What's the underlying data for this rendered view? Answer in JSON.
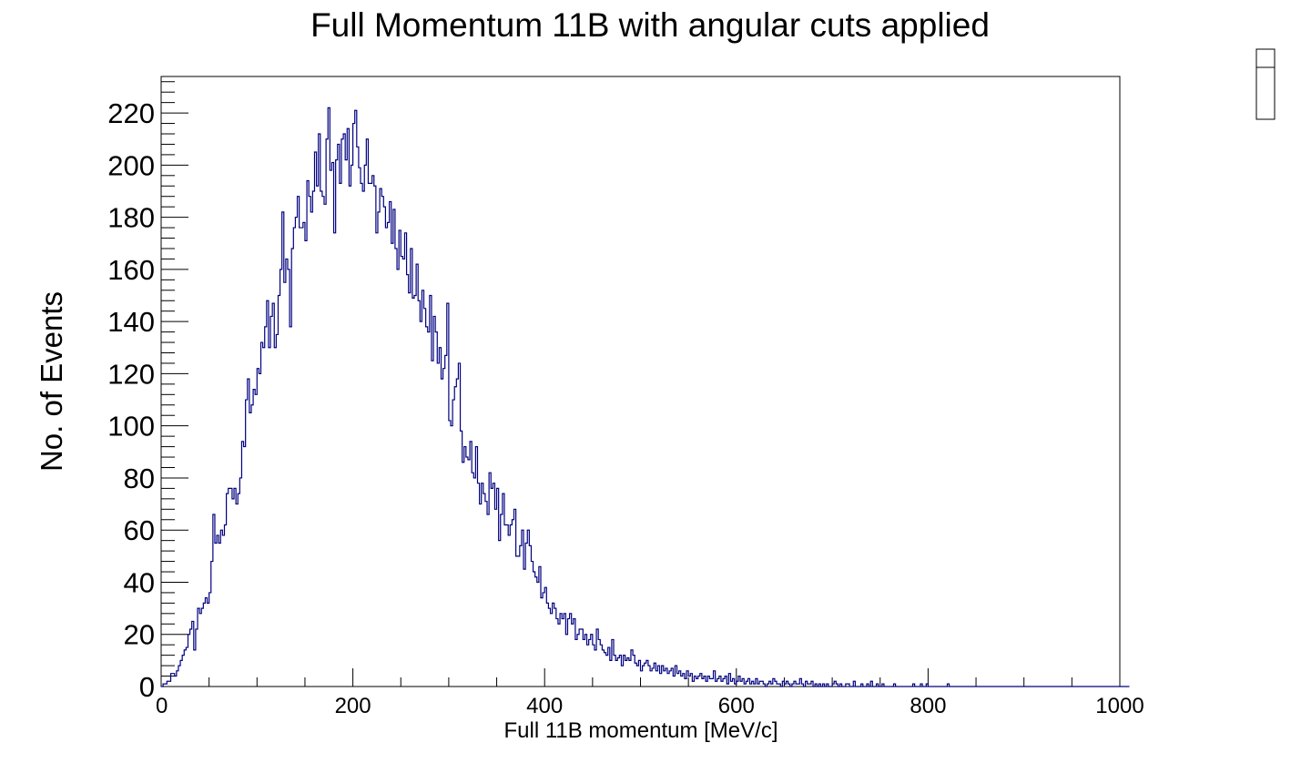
{
  "chart_data": {
    "type": "histogram",
    "title": "Full Momentum 11B with angular cuts applied",
    "xlabel": "Full 11B momentum [MeV/c]",
    "ylabel": "No. of Events",
    "xlim": [
      0,
      1000
    ],
    "ylim": [
      0,
      234
    ],
    "grid": false,
    "legend": "none",
    "line_color": "#000080",
    "x_ticks": [
      0,
      200,
      400,
      600,
      800,
      1000
    ],
    "y_ticks": [
      0,
      20,
      40,
      60,
      80,
      100,
      120,
      140,
      160,
      180,
      200,
      220
    ],
    "x_tick_labels": [
      "0",
      "200",
      "400",
      "600",
      "800",
      "1000"
    ],
    "y_tick_labels": [
      "0",
      "20",
      "40",
      "60",
      "80",
      "100",
      "120",
      "140",
      "160",
      "180",
      "200",
      "220"
    ],
    "bin_width": 2,
    "bin_values": [
      0,
      1,
      1,
      2,
      2,
      5,
      5,
      4,
      6,
      8,
      10,
      12,
      14,
      15,
      20,
      22,
      25,
      14,
      22,
      30,
      28,
      30,
      32,
      34,
      32,
      36,
      48,
      66,
      55,
      58,
      55,
      60,
      58,
      62,
      74,
      76,
      76,
      72,
      76,
      70,
      74,
      80,
      94,
      92,
      110,
      118,
      105,
      108,
      114,
      112,
      122,
      120,
      132,
      130,
      138,
      148,
      130,
      142,
      147,
      130,
      135,
      150,
      160,
      182,
      155,
      164,
      160,
      138,
      168,
      176,
      180,
      188,
      176,
      176,
      178,
      171,
      194,
      188,
      182,
      190,
      205,
      192,
      212,
      190,
      188,
      185,
      210,
      222,
      198,
      201,
      174,
      202,
      208,
      193,
      210,
      212,
      202,
      214,
      192,
      200,
      216,
      221,
      207,
      199,
      193,
      190,
      200,
      210,
      193,
      193,
      196,
      192,
      174,
      182,
      191,
      188,
      184,
      176,
      178,
      186,
      170,
      183,
      168,
      160,
      175,
      165,
      164,
      174,
      158,
      151,
      168,
      149,
      150,
      162,
      148,
      140,
      152,
      145,
      138,
      136,
      150,
      125,
      142,
      136,
      124,
      130,
      118,
      122,
      127,
      147,
      102,
      100,
      110,
      115,
      118,
      124,
      98,
      86,
      92,
      88,
      87,
      94,
      82,
      80,
      92,
      78,
      70,
      78,
      74,
      71,
      66,
      82,
      76,
      78,
      68,
      76,
      56,
      66,
      74,
      62,
      62,
      58,
      62,
      64,
      68,
      50,
      50,
      54,
      60,
      45,
      55,
      60,
      54,
      48,
      44,
      42,
      40,
      46,
      34,
      36,
      38,
      32,
      30,
      28,
      32,
      30,
      26,
      24,
      28,
      26,
      28,
      20,
      26,
      28,
      24,
      26,
      18,
      20,
      22,
      22,
      18,
      20,
      16,
      18,
      20,
      16,
      14,
      22,
      18,
      16,
      14,
      13,
      12,
      15,
      10,
      18,
      12,
      10,
      11,
      12,
      8,
      12,
      10,
      11,
      10,
      14,
      12,
      9,
      8,
      10,
      6,
      8,
      9,
      10,
      8,
      6,
      7,
      9,
      6,
      8,
      5,
      8,
      6,
      7,
      5,
      6,
      7,
      4,
      8,
      5,
      6,
      4,
      5,
      3,
      6,
      4,
      5,
      2,
      4,
      3,
      4,
      5,
      3,
      4,
      2,
      4,
      3,
      3,
      6,
      2,
      3,
      4,
      2,
      3,
      4,
      1,
      5,
      2,
      3,
      1,
      2,
      4,
      2,
      3,
      1,
      2,
      3,
      1,
      2,
      1,
      3,
      1,
      2,
      2,
      1,
      0,
      1,
      2,
      1,
      3,
      2,
      1,
      1,
      0,
      2,
      1,
      2,
      1,
      0,
      1,
      2,
      1,
      1,
      3,
      1,
      0,
      2,
      1,
      1,
      2,
      0,
      1,
      0,
      1,
      0,
      1,
      0,
      1,
      0,
      0,
      1,
      2,
      1,
      0,
      1,
      0,
      0,
      1,
      1,
      0,
      0,
      2,
      0,
      0,
      0,
      1,
      0,
      0,
      1,
      0,
      2,
      0,
      0,
      1,
      0,
      0,
      1,
      0,
      0,
      0,
      0,
      0,
      1,
      0,
      0,
      0,
      0,
      0,
      0,
      0,
      0,
      0,
      1,
      0,
      0,
      0,
      1,
      0,
      0,
      1,
      0,
      0,
      0,
      0,
      0,
      0,
      0,
      0,
      0,
      0,
      1,
      0,
      0,
      0,
      0,
      0,
      0,
      0,
      0,
      0,
      0,
      0,
      0,
      0,
      0,
      0,
      0,
      0,
      0,
      0,
      0,
      0,
      0,
      0,
      0,
      0,
      0,
      0,
      0,
      0,
      0,
      0,
      0,
      0,
      0,
      0,
      0,
      0,
      0,
      0,
      0,
      0,
      0,
      0,
      0,
      0,
      0,
      0,
      0,
      0,
      0,
      0,
      0,
      0,
      0,
      0,
      0,
      0,
      0,
      0,
      0,
      0,
      0,
      0,
      0,
      0,
      0,
      0,
      0,
      0,
      0,
      0,
      0,
      0,
      0,
      0,
      0,
      0,
      0,
      0,
      0,
      0,
      0,
      0,
      0,
      0,
      0,
      0,
      0,
      0,
      0,
      0,
      0,
      0,
      0
    ]
  }
}
